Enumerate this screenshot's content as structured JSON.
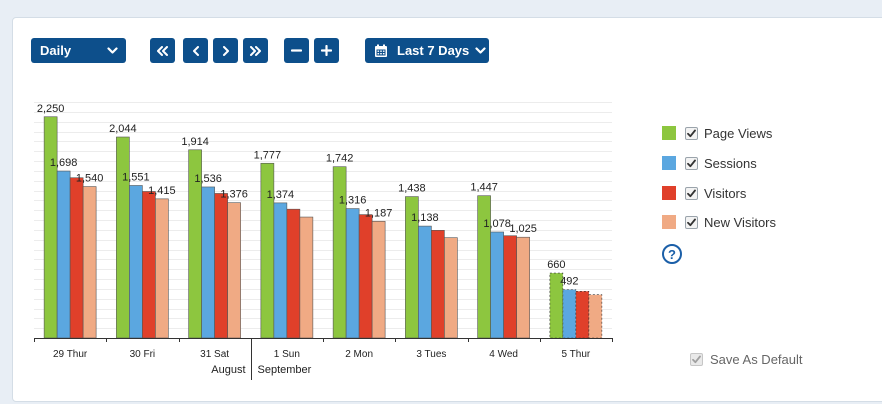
{
  "toolbar": {
    "period": "Daily",
    "range": "Last 7 Days",
    "nav_first": "«",
    "nav_prev": "‹",
    "nav_next": "›",
    "nav_last": "»",
    "zoom_out": "−",
    "zoom_in": "+"
  },
  "legend": {
    "items": [
      {
        "label": "Page Views",
        "color": "#8dc63f",
        "checked": true
      },
      {
        "label": "Sessions",
        "color": "#5ba7e0",
        "checked": true
      },
      {
        "label": "Visitors",
        "color": "#e0402a",
        "checked": true
      },
      {
        "label": "New Visitors",
        "color": "#f0aa84",
        "checked": true
      }
    ],
    "help": "?"
  },
  "save_default": {
    "label": "Save As Default",
    "checked": true,
    "disabled": true
  },
  "chart_data": {
    "type": "bar",
    "categories": [
      "29 Thur",
      "30 Fri",
      "31 Sat",
      "1 Sun",
      "2 Mon",
      "3 Tues",
      "4 Wed",
      "5 Thur"
    ],
    "month_labels": [
      "August",
      "September"
    ],
    "series": [
      {
        "name": "Page Views",
        "color": "#8dc63f",
        "values": [
          2250,
          2044,
          1914,
          1777,
          1742,
          1438,
          1447,
          660
        ]
      },
      {
        "name": "Sessions",
        "color": "#5ba7e0",
        "values": [
          1698,
          1551,
          1536,
          1374,
          1316,
          1138,
          1078,
          492
        ]
      },
      {
        "name": "Visitors",
        "color": "#e0402a",
        "values": [
          1630,
          1490,
          1470,
          1310,
          1255,
          1095,
          1040,
          475
        ]
      },
      {
        "name": "New Visitors",
        "color": "#f0aa84",
        "values": [
          1540,
          1415,
          1376,
          1230,
          1187,
          1020,
          1025,
          440
        ]
      }
    ],
    "data_labels": [
      [
        "2,250",
        "1,698",
        "",
        "1,540"
      ],
      [
        "2,044",
        "1,551",
        "",
        "1,415"
      ],
      [
        "1,914",
        "1,536",
        "",
        "1,376"
      ],
      [
        "1,777",
        "1,374",
        "",
        ""
      ],
      [
        "1,742",
        "1,316",
        "",
        "1,187"
      ],
      [
        "1,438",
        "1,138",
        "",
        ""
      ],
      [
        "1,447",
        "1,078",
        "",
        "1,025"
      ],
      [
        "660",
        "492",
        "",
        ""
      ]
    ],
    "partial_category": "5 Thur",
    "ylim": [
      0,
      2400
    ],
    "grid": true,
    "legend_position": "right"
  }
}
